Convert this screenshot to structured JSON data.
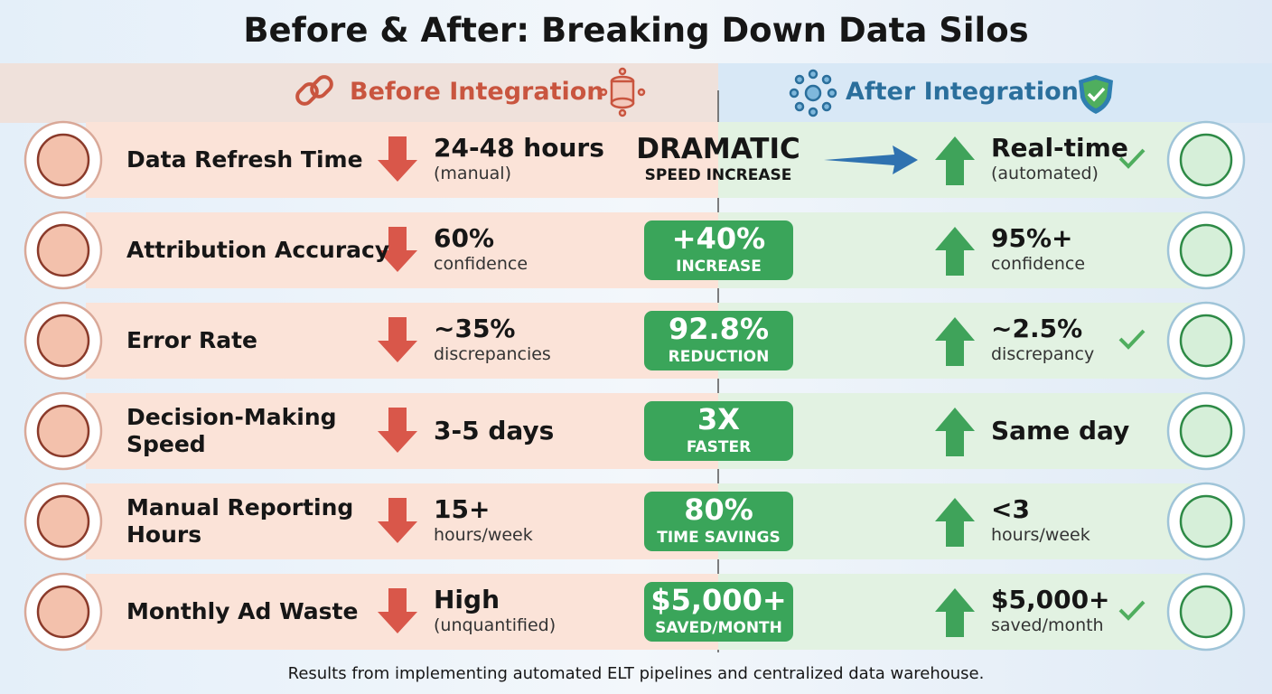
{
  "title": "Before & After: Breaking Down Data Silos",
  "before_header": "Before Integration",
  "after_header": "After Integration",
  "rows": [
    {
      "metric_lines": [
        "Data Refresh Time"
      ],
      "before_value": "24-48 hours",
      "before_note": "(manual)",
      "change_value": "DRAMATIC",
      "change_note": "SPEED INCREASE",
      "after_value": "Real-time",
      "after_note": "(automated)"
    },
    {
      "metric_lines": [
        "Attribution Accuracy"
      ],
      "before_value": "60%",
      "before_note": "confidence",
      "change_value": "+40%",
      "change_note": "INCREASE",
      "after_value": "95%+",
      "after_note": "confidence"
    },
    {
      "metric_lines": [
        "Error Rate"
      ],
      "before_value": "~35%",
      "before_note": "discrepancies",
      "change_value": "92.8%",
      "change_note": "REDUCTION",
      "after_value": "~2.5%",
      "after_note": "discrepancy"
    },
    {
      "metric_lines": [
        "Decision-Making",
        "Speed"
      ],
      "before_value": "3-5 days",
      "change_value": "3X",
      "change_note": "FASTER",
      "after_value": "Same day"
    },
    {
      "metric_lines": [
        "Manual Reporting",
        "Hours"
      ],
      "before_value": "15+",
      "before_note": "hours/week",
      "change_value": "80%",
      "change_note": "TIME SAVINGS",
      "after_value": "<3",
      "after_note": "hours/week"
    },
    {
      "metric_lines": [
        "Monthly Ad Waste"
      ],
      "before_value": "High",
      "before_note": "(unquantified)",
      "change_value": "$5,000+",
      "change_note": "SAVED/MONTH",
      "after_value": "$5,000+",
      "after_note": "saved/month"
    }
  ],
  "footer": "Results from implementing automated ELT pipelines and centralized data warehouse."
}
